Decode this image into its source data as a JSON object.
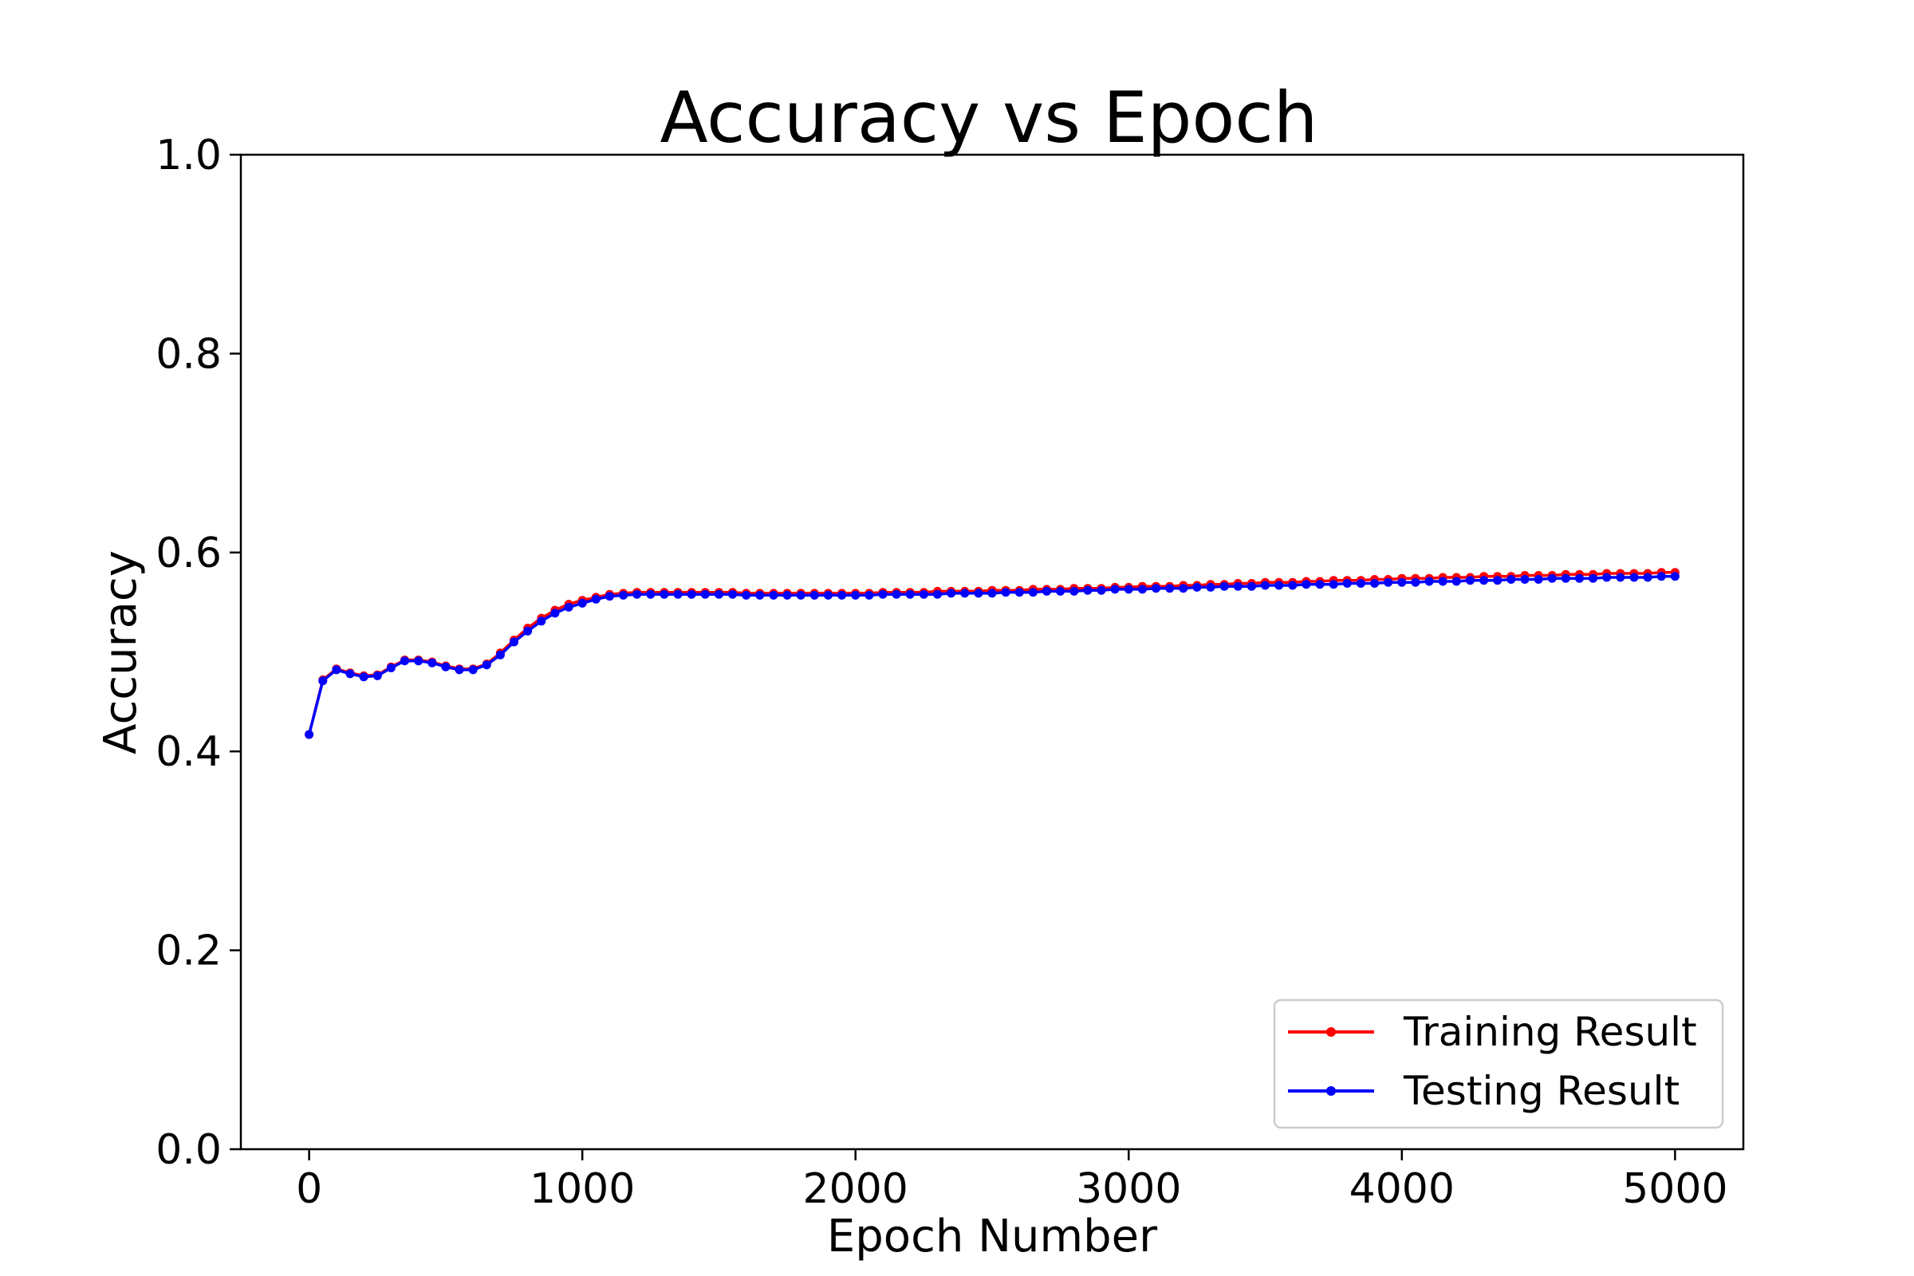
{
  "chart_data": {
    "type": "line",
    "title": "Accuracy vs Epoch",
    "xlabel": "Epoch Number",
    "ylabel": "Accuracy",
    "xlim": [
      -250,
      5250
    ],
    "ylim": [
      0.0,
      1.0
    ],
    "xticks": [
      0,
      1000,
      2000,
      3000,
      4000,
      5000
    ],
    "xtick_labels": [
      "0",
      "1000",
      "2000",
      "3000",
      "4000",
      "5000"
    ],
    "yticks": [
      0.0,
      0.2,
      0.4,
      0.6,
      0.8,
      1.0
    ],
    "ytick_labels": [
      "0.0",
      "0.2",
      "0.4",
      "0.6",
      "0.8",
      "1.0"
    ],
    "grid": false,
    "legend_position": "bottom-right",
    "x_start": 0,
    "x_step": 50,
    "series": [
      {
        "name": "Training Result",
        "color": "#ff0000",
        "values": [
          0.417,
          0.472,
          0.483,
          0.479,
          0.476,
          0.477,
          0.485,
          0.492,
          0.492,
          0.49,
          0.486,
          0.483,
          0.483,
          0.488,
          0.499,
          0.512,
          0.524,
          0.534,
          0.542,
          0.548,
          0.552,
          0.555,
          0.558,
          0.559,
          0.56,
          0.56,
          0.56,
          0.56,
          0.56,
          0.56,
          0.56,
          0.56,
          0.559,
          0.559,
          0.559,
          0.559,
          0.559,
          0.559,
          0.559,
          0.559,
          0.559,
          0.559,
          0.56,
          0.56,
          0.56,
          0.56,
          0.561,
          0.561,
          0.561,
          0.561,
          0.562,
          0.562,
          0.562,
          0.563,
          0.563,
          0.563,
          0.564,
          0.564,
          0.564,
          0.565,
          0.565,
          0.566,
          0.566,
          0.566,
          0.567,
          0.567,
          0.568,
          0.568,
          0.569,
          0.569,
          0.57,
          0.57,
          0.57,
          0.571,
          0.571,
          0.572,
          0.572,
          0.572,
          0.573,
          0.573,
          0.574,
          0.574,
          0.574,
          0.575,
          0.575,
          0.575,
          0.576,
          0.576,
          0.576,
          0.577,
          0.577,
          0.577,
          0.578,
          0.578,
          0.578,
          0.579,
          0.579,
          0.579,
          0.579,
          0.58,
          0.58
        ]
      },
      {
        "name": "Testing Result",
        "color": "#0000ff",
        "values": [
          0.417,
          0.471,
          0.482,
          0.478,
          0.475,
          0.476,
          0.484,
          0.491,
          0.491,
          0.489,
          0.485,
          0.482,
          0.482,
          0.487,
          0.497,
          0.51,
          0.521,
          0.531,
          0.539,
          0.545,
          0.549,
          0.553,
          0.556,
          0.557,
          0.558,
          0.558,
          0.558,
          0.558,
          0.558,
          0.558,
          0.558,
          0.558,
          0.557,
          0.557,
          0.557,
          0.557,
          0.557,
          0.557,
          0.557,
          0.557,
          0.557,
          0.557,
          0.558,
          0.558,
          0.558,
          0.558,
          0.558,
          0.559,
          0.559,
          0.559,
          0.559,
          0.56,
          0.56,
          0.56,
          0.561,
          0.561,
          0.561,
          0.562,
          0.562,
          0.563,
          0.563,
          0.563,
          0.564,
          0.564,
          0.564,
          0.565,
          0.565,
          0.566,
          0.566,
          0.566,
          0.567,
          0.567,
          0.567,
          0.568,
          0.568,
          0.568,
          0.569,
          0.569,
          0.569,
          0.57,
          0.57,
          0.57,
          0.571,
          0.571,
          0.571,
          0.572,
          0.572,
          0.572,
          0.573,
          0.573,
          0.573,
          0.574,
          0.574,
          0.574,
          0.574,
          0.575,
          0.575,
          0.575,
          0.575,
          0.576,
          0.576
        ]
      }
    ]
  }
}
